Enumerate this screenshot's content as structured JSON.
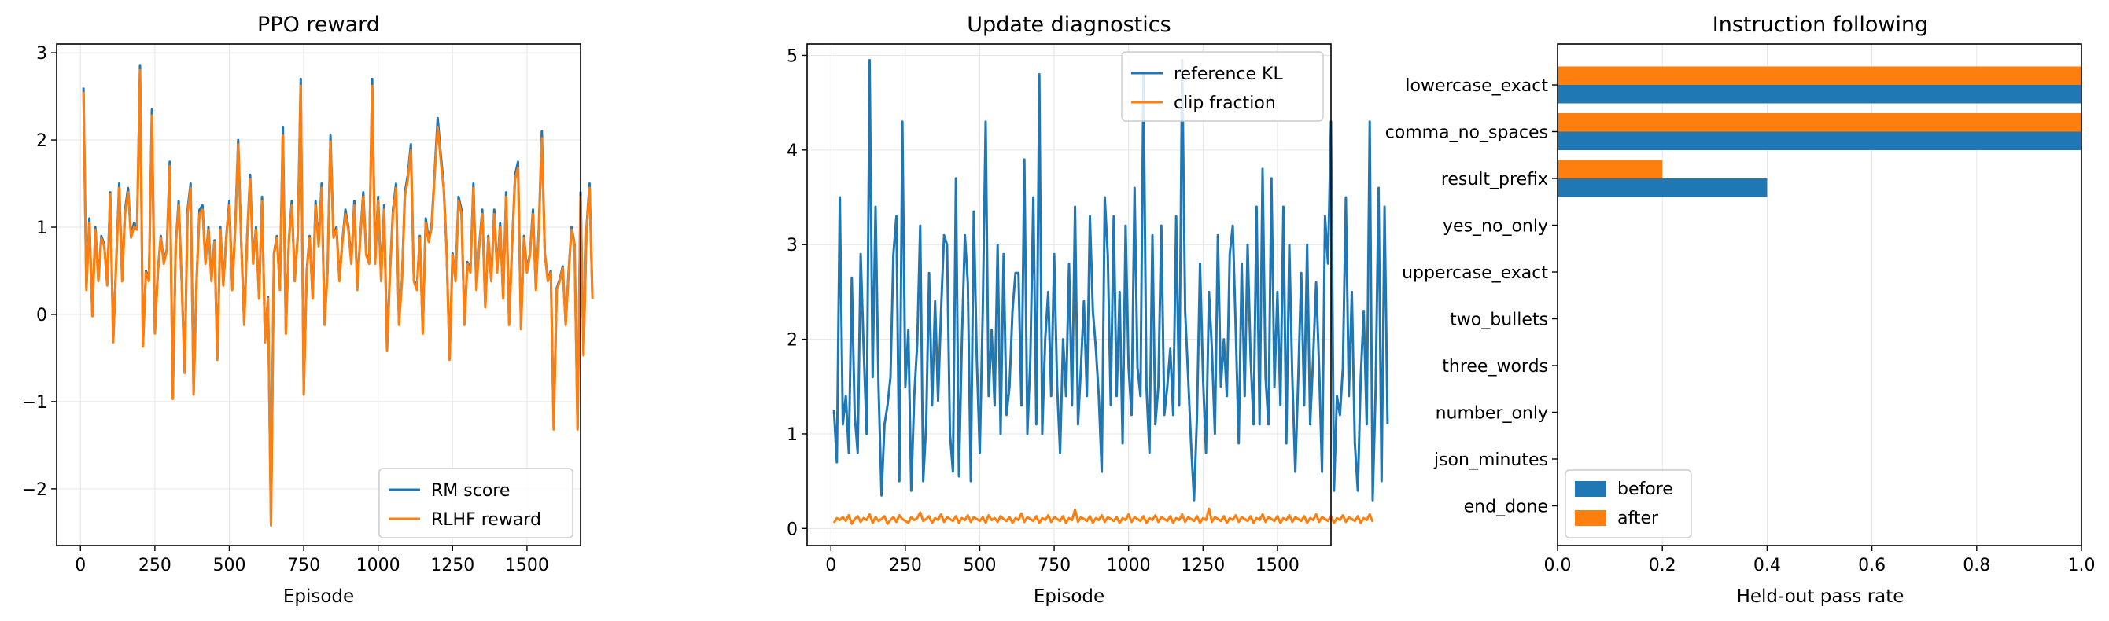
{
  "colors": {
    "blue": "#1f77b4",
    "orange": "#ff7f0e",
    "grid": "#e6e6e6"
  },
  "chart_data": [
    {
      "type": "line",
      "title": "PPO reward",
      "xlabel": "Episode",
      "ylabel": "",
      "xlim": [
        -80,
        1680
      ],
      "ylim": [
        -2.65,
        3.1
      ],
      "xticks": [
        0,
        250,
        500,
        750,
        1000,
        1250,
        1500
      ],
      "yticks": [
        -2,
        -1,
        0,
        1,
        2,
        3
      ],
      "ytick_labels": [
        "−2",
        "−1",
        "0",
        "1",
        "2",
        "3"
      ],
      "grid": true,
      "legend": "lower-right",
      "x_start": 10,
      "x_step": 10,
      "series": [
        {
          "name": "RM score",
          "color": "#1f77b4",
          "values": [
            2.6,
            0.3,
            1.1,
            0.0,
            1.0,
            0.4,
            0.9,
            0.8,
            0.35,
            1.4,
            -0.3,
            0.6,
            1.5,
            0.4,
            1.2,
            1.45,
            0.9,
            1.05,
            1.0,
            2.85,
            -0.35,
            0.5,
            0.4,
            2.35,
            -0.2,
            0.5,
            0.9,
            0.6,
            0.75,
            1.75,
            -0.95,
            0.8,
            1.3,
            0.4,
            -0.65,
            1.2,
            1.5,
            -0.9,
            0.4,
            1.2,
            1.25,
            0.6,
            1.0,
            0.4,
            0.85,
            -0.5,
            1.0,
            0.35,
            0.9,
            1.3,
            0.3,
            1.0,
            2.0,
            0.85,
            -0.1,
            0.9,
            1.6,
            0.6,
            1.0,
            0.2,
            1.35,
            -0.3,
            0.2,
            -2.4,
            0.7,
            0.9,
            0.3,
            2.15,
            -0.2,
            0.85,
            1.3,
            0.4,
            0.9,
            2.7,
            -0.9,
            0.5,
            0.9,
            0.2,
            1.3,
            0.8,
            1.5,
            -0.1,
            0.5,
            2.05,
            0.9,
            1.0,
            0.4,
            0.85,
            1.2,
            1.0,
            0.6,
            1.3,
            0.3,
            0.9,
            1.4,
            0.7,
            0.6,
            2.7,
            0.6,
            1.35,
            0.4,
            1.25,
            -0.4,
            0.5,
            1.2,
            1.5,
            -0.1,
            0.4,
            1.4,
            1.6,
            1.95,
            0.4,
            0.3,
            0.9,
            -0.2,
            1.1,
            0.85,
            1.05,
            1.65,
            2.25,
            1.85,
            1.5,
            0.75,
            -0.5,
            0.7,
            0.4,
            1.35,
            1.2,
            -0.1,
            0.6,
            0.5,
            1.5,
            0.3,
            0.8,
            1.2,
            0.1,
            0.9,
            0.4,
            1.2,
            0.5,
            1.05,
            0.2,
            1.4,
            -0.1,
            0.8,
            1.6,
            1.75,
            -0.15,
            0.9,
            0.5,
            0.7,
            1.2,
            0.3,
            1.0,
            2.1,
            0.7,
            0.4,
            0.5,
            -1.3,
            0.3,
            0.4,
            0.55,
            -0.1,
            0.5,
            1.0,
            0.8,
            -1.3,
            1.4,
            -0.45,
            1.0,
            1.5,
            0.2
          ]
        },
        {
          "name": "RLHF reward",
          "color": "#ff7f0e",
          "values": [
            2.55,
            0.28,
            1.05,
            -0.02,
            0.97,
            0.38,
            0.87,
            0.78,
            0.33,
            1.38,
            -0.32,
            0.58,
            1.45,
            0.38,
            1.15,
            1.4,
            0.88,
            1.0,
            0.97,
            2.8,
            -0.37,
            0.48,
            0.38,
            2.28,
            -0.22,
            0.48,
            0.88,
            0.58,
            0.73,
            1.7,
            -0.97,
            0.78,
            1.25,
            0.38,
            -0.67,
            1.15,
            1.45,
            -0.92,
            0.38,
            1.15,
            1.2,
            0.58,
            0.97,
            0.38,
            0.83,
            -0.52,
            0.97,
            0.33,
            0.88,
            1.25,
            0.28,
            0.97,
            1.95,
            0.83,
            -0.12,
            0.88,
            1.55,
            0.58,
            0.97,
            0.18,
            1.3,
            -0.32,
            0.18,
            -2.42,
            0.68,
            0.88,
            0.28,
            2.05,
            -0.22,
            0.83,
            1.25,
            0.38,
            0.88,
            2.62,
            -0.92,
            0.48,
            0.88,
            0.18,
            1.25,
            0.78,
            1.45,
            -0.12,
            0.48,
            1.98,
            0.88,
            0.97,
            0.38,
            0.83,
            1.15,
            0.97,
            0.58,
            1.25,
            0.28,
            0.88,
            1.35,
            0.68,
            0.58,
            2.62,
            0.58,
            1.3,
            0.38,
            1.2,
            -0.42,
            0.48,
            1.15,
            1.45,
            -0.12,
            0.38,
            1.35,
            1.55,
            1.88,
            0.38,
            0.28,
            0.88,
            -0.22,
            1.05,
            0.83,
            1.0,
            1.6,
            2.15,
            1.78,
            1.45,
            0.73,
            -0.52,
            0.68,
            0.38,
            1.3,
            1.15,
            -0.12,
            0.58,
            0.48,
            1.45,
            0.28,
            0.78,
            1.15,
            0.08,
            0.88,
            0.38,
            1.15,
            0.48,
            1.0,
            0.18,
            1.35,
            -0.12,
            0.78,
            1.55,
            1.68,
            -0.17,
            0.88,
            0.48,
            0.68,
            1.15,
            0.28,
            0.97,
            2.02,
            0.68,
            0.38,
            0.48,
            -1.32,
            0.28,
            0.38,
            0.53,
            -0.12,
            0.48,
            0.97,
            0.78,
            -1.32,
            1.35,
            -0.47,
            0.97,
            1.45,
            0.18
          ]
        }
      ]
    },
    {
      "type": "line",
      "title": "Update diagnostics",
      "xlabel": "Episode",
      "ylabel": "",
      "xlim": [
        -80,
        1680
      ],
      "ylim": [
        -0.18,
        5.12
      ],
      "xticks": [
        0,
        250,
        500,
        750,
        1000,
        1250,
        1500
      ],
      "yticks": [
        0,
        1,
        2,
        3,
        4,
        5
      ],
      "ytick_labels": [
        "0",
        "1",
        "2",
        "3",
        "4",
        "5"
      ],
      "grid": true,
      "legend": "upper-right",
      "x_start": 10,
      "x_step": 10,
      "series": [
        {
          "name": "reference KL",
          "color": "#1f77b4",
          "values": [
            1.25,
            0.7,
            3.5,
            1.1,
            1.4,
            0.8,
            2.65,
            1.2,
            0.8,
            2.9,
            1.9,
            1.0,
            4.95,
            1.6,
            3.4,
            1.5,
            0.35,
            1.1,
            1.3,
            1.6,
            2.9,
            3.3,
            0.5,
            4.3,
            1.5,
            2.1,
            0.4,
            1.4,
            1.95,
            3.2,
            0.5,
            1.1,
            2.7,
            1.3,
            2.4,
            1.35,
            2.3,
            3.1,
            3.0,
            1.0,
            0.6,
            3.7,
            0.55,
            2.0,
            3.1,
            2.6,
            0.5,
            3.35,
            1.8,
            0.8,
            2.3,
            4.3,
            1.4,
            2.1,
            1.3,
            3.0,
            1.0,
            2.9,
            1.2,
            1.5,
            2.3,
            2.7,
            2.7,
            1.3,
            3.9,
            1.0,
            1.8,
            3.5,
            1.1,
            4.8,
            1.0,
            2.0,
            2.5,
            1.4,
            2.9,
            1.5,
            0.8,
            2.0,
            1.4,
            2.8,
            1.3,
            3.4,
            1.1,
            1.7,
            2.4,
            1.4,
            3.3,
            2.3,
            1.9,
            1.4,
            0.6,
            3.5,
            2.9,
            1.3,
            3.3,
            1.4,
            2.5,
            0.9,
            3.2,
            1.7,
            1.2,
            3.6,
            1.7,
            1.4,
            4.8,
            1.5,
            0.8,
            3.1,
            1.1,
            1.5,
            3.2,
            1.2,
            1.5,
            1.9,
            1.2,
            3.3,
            1.3,
            4.95,
            2.3,
            1.6,
            0.9,
            0.3,
            1.2,
            2.8,
            1.6,
            0.8,
            2.5,
            1.9,
            1.0,
            3.1,
            1.5,
            2.0,
            1.4,
            2.9,
            3.2,
            2.1,
            0.9,
            2.8,
            1.4,
            3.0,
            1.8,
            1.1,
            3.4,
            1.1,
            3.8,
            1.6,
            1.1,
            3.7,
            1.5,
            2.5,
            1.3,
            3.4,
            0.9,
            3.0,
            1.6,
            0.6,
            1.6,
            2.7,
            1.3,
            3.0,
            1.1,
            1.8,
            2.6,
            1.7,
            0.6,
            3.3,
            2.8,
            4.3,
            0.4,
            1.4,
            1.2,
            1.7,
            3.5,
            1.4,
            2.5,
            0.9,
            0.4,
            1.6,
            2.3,
            1.1,
            4.3,
            0.3,
            1.5,
            3.6,
            0.5,
            3.4,
            1.1
          ]
        },
        {
          "name": "clip fraction",
          "color": "#ff7f0e",
          "values": [
            0.06,
            0.11,
            0.09,
            0.12,
            0.08,
            0.14,
            0.05,
            0.1,
            0.13,
            0.07,
            0.11,
            0.09,
            0.15,
            0.06,
            0.12,
            0.08,
            0.1,
            0.13,
            0.05,
            0.09,
            0.12,
            0.07,
            0.14,
            0.1,
            0.08,
            0.06,
            0.12,
            0.09,
            0.11,
            0.17,
            0.08,
            0.1,
            0.13,
            0.06,
            0.11,
            0.09,
            0.15,
            0.07,
            0.12,
            0.1,
            0.08,
            0.13,
            0.06,
            0.11,
            0.09,
            0.14,
            0.07,
            0.12,
            0.1,
            0.08,
            0.12,
            0.06,
            0.14,
            0.09,
            0.11,
            0.07,
            0.13,
            0.1,
            0.08,
            0.12,
            0.06,
            0.11,
            0.09,
            0.16,
            0.07,
            0.12,
            0.1,
            0.08,
            0.13,
            0.06,
            0.11,
            0.09,
            0.14,
            0.07,
            0.12,
            0.1,
            0.08,
            0.13,
            0.06,
            0.11,
            0.09,
            0.2,
            0.07,
            0.12,
            0.1,
            0.08,
            0.13,
            0.06,
            0.11,
            0.09,
            0.14,
            0.07,
            0.12,
            0.1,
            0.08,
            0.12,
            0.06,
            0.11,
            0.09,
            0.15,
            0.07,
            0.12,
            0.1,
            0.08,
            0.13,
            0.06,
            0.11,
            0.09,
            0.14,
            0.07,
            0.12,
            0.1,
            0.08,
            0.13,
            0.06,
            0.11,
            0.09,
            0.15,
            0.07,
            0.12,
            0.1,
            0.08,
            0.13,
            0.06,
            0.11,
            0.09,
            0.21,
            0.07,
            0.12,
            0.1,
            0.08,
            0.13,
            0.06,
            0.11,
            0.09,
            0.14,
            0.07,
            0.12,
            0.1,
            0.08,
            0.13,
            0.06,
            0.11,
            0.09,
            0.15,
            0.07,
            0.12,
            0.1,
            0.08,
            0.13,
            0.06,
            0.11,
            0.09,
            0.14,
            0.07,
            0.12,
            0.1,
            0.08,
            0.13,
            0.06,
            0.11,
            0.09,
            0.15,
            0.07,
            0.12,
            0.1,
            0.08,
            0.13,
            0.06,
            0.11,
            0.09,
            0.14,
            0.07,
            0.12,
            0.1,
            0.08,
            0.13,
            0.06,
            0.11,
            0.09,
            0.15,
            0.07
          ]
        }
      ]
    },
    {
      "type": "bar",
      "orientation": "horizontal",
      "title": "Instruction following",
      "xlabel": "Held-out pass rate",
      "ylabel": "",
      "xlim": [
        0,
        1
      ],
      "xticks": [
        0,
        0.2,
        0.4,
        0.6,
        0.8,
        1.0
      ],
      "xtick_labels": [
        "0.0",
        "0.2",
        "0.4",
        "0.6",
        "0.8",
        "1.0"
      ],
      "grid": true,
      "legend": "lower-left",
      "categories": [
        "lowercase_exact",
        "comma_no_spaces",
        "result_prefix",
        "yes_no_only",
        "uppercase_exact",
        "two_bullets",
        "three_words",
        "number_only",
        "json_minutes",
        "end_done"
      ],
      "series": [
        {
          "name": "before",
          "color": "#1f77b4",
          "values": [
            1.0,
            1.0,
            0.4,
            0,
            0,
            0,
            0,
            0,
            0,
            0
          ]
        },
        {
          "name": "after",
          "color": "#ff7f0e",
          "values": [
            1.0,
            1.0,
            0.2,
            0,
            0,
            0,
            0,
            0,
            0,
            0
          ]
        }
      ]
    }
  ]
}
